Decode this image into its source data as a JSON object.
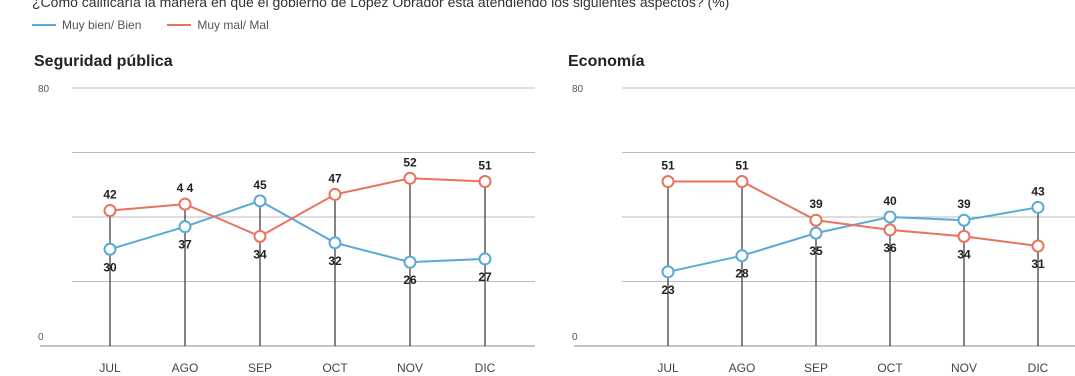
{
  "header": {
    "question": "¿Cómo calificaría la manera en que el gobierno de López Obrador está atendiendo los siguientes aspectos? (%)"
  },
  "legend": {
    "good_label": "Muy bien/ Bien",
    "bad_label": "Muy mal/ Mal"
  },
  "colors": {
    "good": "#5aa9d6",
    "bad": "#e8735e"
  },
  "chart_data": [
    {
      "type": "line",
      "title": "Seguridad pública",
      "categories": [
        "JUL",
        "AGO",
        "SEP",
        "OCT",
        "NOV",
        "DIC"
      ],
      "ylim": [
        0,
        80
      ],
      "ytick_labels": [
        "0",
        "80"
      ],
      "series": [
        {
          "name": "Muy bien/ Bien",
          "color_key": "good",
          "values": [
            30,
            37,
            45,
            32,
            26,
            27
          ]
        },
        {
          "name": "Muy mal/ Mal",
          "color_key": "bad",
          "values": [
            42,
            44,
            34,
            47,
            52,
            51
          ]
        }
      ],
      "value_labels_bad": [
        "42",
        "4 4",
        "34",
        "47",
        "52",
        "51"
      ],
      "value_labels_good": [
        "30",
        "37",
        "45",
        "32",
        "26",
        "27"
      ]
    },
    {
      "type": "line",
      "title": "Economía",
      "categories": [
        "JUL",
        "AGO",
        "SEP",
        "OCT",
        "NOV",
        "DIC"
      ],
      "ylim": [
        0,
        80
      ],
      "ytick_labels": [
        "0",
        "80"
      ],
      "series": [
        {
          "name": "Muy bien/ Bien",
          "color_key": "good",
          "values": [
            23,
            28,
            35,
            40,
            39,
            43
          ]
        },
        {
          "name": "Muy mal/ Mal",
          "color_key": "bad",
          "values": [
            51,
            51,
            39,
            36,
            34,
            31
          ]
        }
      ],
      "value_labels_bad": [
        "51",
        "51",
        "39",
        "36",
        "34",
        "31"
      ],
      "value_labels_good": [
        "23",
        "28",
        "35",
        "40",
        "39",
        "43"
      ]
    }
  ]
}
